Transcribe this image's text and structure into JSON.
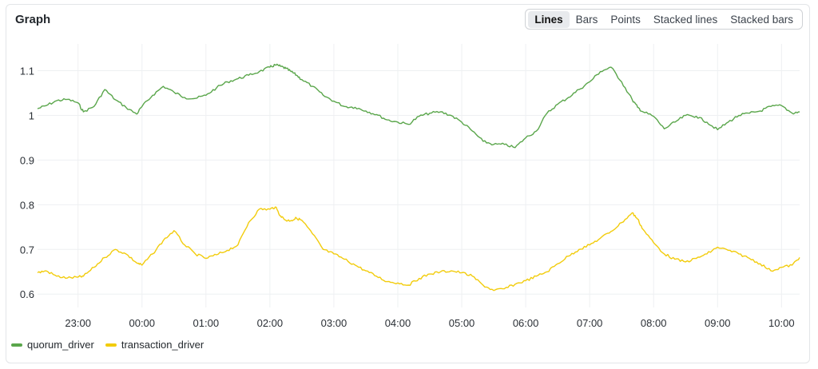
{
  "panel": {
    "title": "Graph",
    "modes": [
      "Lines",
      "Bars",
      "Points",
      "Stacked lines",
      "Stacked bars"
    ],
    "active_mode": "Lines"
  },
  "chart_data": {
    "type": "line",
    "title": "Graph",
    "xlabel": "",
    "ylabel": "",
    "ylim": [
      0.57,
      1.16
    ],
    "yticks": [
      0.6,
      0.7,
      0.8,
      0.9,
      1,
      1.1
    ],
    "ytick_labels": [
      "0.6",
      "0.7",
      "0.8",
      "0.9",
      "1",
      "1.1"
    ],
    "xlim": [
      "22:22",
      "10:17"
    ],
    "xticks": [
      "23:00",
      "00:00",
      "01:00",
      "02:00",
      "03:00",
      "04:00",
      "05:00",
      "06:00",
      "07:00",
      "08:00",
      "09:00",
      "10:00"
    ],
    "grid": true,
    "legend_position": "bottom-left",
    "x": [
      "22:22",
      "22:30",
      "22:40",
      "22:50",
      "23:00",
      "23:05",
      "23:15",
      "23:25",
      "23:35",
      "23:45",
      "23:55",
      "00:00",
      "00:10",
      "00:20",
      "00:30",
      "00:40",
      "00:50",
      "01:00",
      "01:10",
      "01:20",
      "01:30",
      "01:40",
      "01:50",
      "02:00",
      "02:05",
      "02:10",
      "02:15",
      "02:20",
      "02:25",
      "02:30",
      "02:40",
      "02:50",
      "03:00",
      "03:10",
      "03:20",
      "03:30",
      "03:40",
      "03:50",
      "04:00",
      "04:10",
      "04:20",
      "04:30",
      "04:40",
      "04:50",
      "05:00",
      "05:10",
      "05:20",
      "05:30",
      "05:40",
      "05:50",
      "06:00",
      "06:10",
      "06:20",
      "06:30",
      "06:40",
      "06:50",
      "07:00",
      "07:10",
      "07:20",
      "07:30",
      "07:40",
      "07:45",
      "07:50",
      "08:00",
      "08:10",
      "08:20",
      "08:30",
      "08:40",
      "08:50",
      "09:00",
      "09:10",
      "09:20",
      "09:30",
      "09:40",
      "09:50",
      "10:00",
      "10:10",
      "10:17"
    ],
    "series": [
      {
        "name": "quorum_driver",
        "color": "#5aa64b",
        "values": [
          1.015,
          1.022,
          1.033,
          1.036,
          1.028,
          1.008,
          1.02,
          1.058,
          1.035,
          1.018,
          1.003,
          1.02,
          1.045,
          1.065,
          1.052,
          1.04,
          1.038,
          1.045,
          1.062,
          1.075,
          1.082,
          1.09,
          1.098,
          1.108,
          1.113,
          1.11,
          1.105,
          1.098,
          1.09,
          1.08,
          1.065,
          1.045,
          1.032,
          1.02,
          1.018,
          1.01,
          1.002,
          0.99,
          0.985,
          0.98,
          0.998,
          1.005,
          1.008,
          1.0,
          0.985,
          0.965,
          0.942,
          0.935,
          0.935,
          0.928,
          0.95,
          0.965,
          1.005,
          1.025,
          1.04,
          1.058,
          1.075,
          1.098,
          1.108,
          1.075,
          1.035,
          1.018,
          1.008,
          0.998,
          0.97,
          0.985,
          1.0,
          0.998,
          0.985,
          0.968,
          0.985,
          1.0,
          1.005,
          1.01,
          1.02,
          1.022,
          1.005,
          1.008
        ]
      },
      {
        "name": "transaction_driver",
        "color": "#f2cc0c",
        "values": [
          0.648,
          0.652,
          0.64,
          0.636,
          0.638,
          0.64,
          0.66,
          0.682,
          0.7,
          0.69,
          0.67,
          0.665,
          0.69,
          0.72,
          0.742,
          0.71,
          0.69,
          0.68,
          0.688,
          0.698,
          0.71,
          0.76,
          0.79,
          0.79,
          0.795,
          0.775,
          0.765,
          0.765,
          0.77,
          0.765,
          0.735,
          0.7,
          0.69,
          0.678,
          0.665,
          0.652,
          0.64,
          0.628,
          0.625,
          0.62,
          0.635,
          0.645,
          0.65,
          0.652,
          0.648,
          0.64,
          0.62,
          0.608,
          0.612,
          0.622,
          0.63,
          0.64,
          0.65,
          0.668,
          0.685,
          0.7,
          0.71,
          0.725,
          0.74,
          0.76,
          0.782,
          0.768,
          0.745,
          0.715,
          0.69,
          0.678,
          0.672,
          0.68,
          0.69,
          0.705,
          0.698,
          0.69,
          0.68,
          0.668,
          0.652,
          0.66,
          0.665,
          0.682
        ]
      }
    ]
  }
}
